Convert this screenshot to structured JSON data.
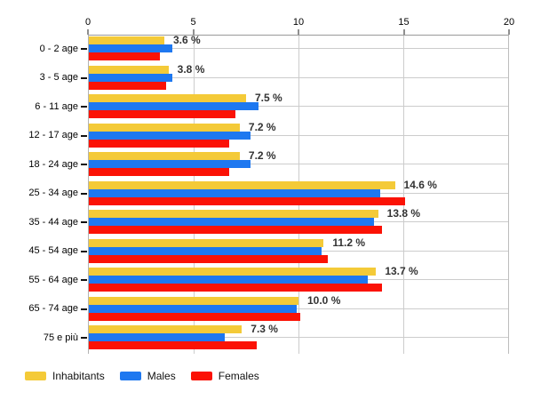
{
  "chart_data": {
    "type": "bar",
    "orientation": "horizontal",
    "title": "",
    "xlabel": "",
    "ylabel": "",
    "xlim": [
      0,
      20
    ],
    "x_ticks": [
      "0",
      "5",
      "10",
      "15",
      "20"
    ],
    "grid": true,
    "legend_position": "bottom",
    "background_color": "#ffffff",
    "gridline_color": "#cccccc",
    "categories": [
      "0 - 2 age",
      "3 - 5 age",
      "6 - 11 age",
      "12 - 17 age",
      "18 - 24 age",
      "25 - 34 age",
      "35 - 44 age",
      "45 - 54 age",
      "55 - 64 age",
      "65 - 74 age",
      "75 e più"
    ],
    "series": [
      {
        "name": "Inhabitants",
        "color": "#f4ca38",
        "values": [
          3.6,
          3.8,
          7.5,
          7.2,
          7.2,
          14.6,
          13.8,
          11.2,
          13.7,
          10.0,
          7.3
        ]
      },
      {
        "name": "Males",
        "color": "#1e78f0",
        "values": [
          4.0,
          4.0,
          8.1,
          7.7,
          7.7,
          13.9,
          13.6,
          11.1,
          13.3,
          9.9,
          6.5
        ]
      },
      {
        "name": "Females",
        "color": "#fb1205",
        "values": [
          3.4,
          3.7,
          7.0,
          6.7,
          6.7,
          15.1,
          14.0,
          11.4,
          14.0,
          10.1,
          8.0
        ]
      }
    ],
    "value_labels": [
      "3.6 %",
      "3.8 %",
      "7.5 %",
      "7.2 %",
      "7.2 %",
      "14.6 %",
      "13.8 %",
      "11.2 %",
      "13.7 %",
      "10.0 %",
      "7.3 %"
    ],
    "value_labels_series": "Inhabitants"
  }
}
